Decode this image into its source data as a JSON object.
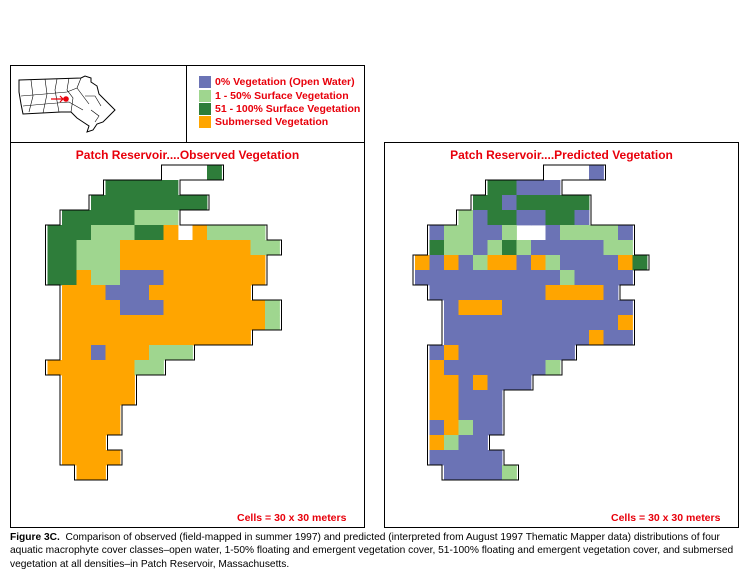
{
  "legend": {
    "items": [
      {
        "label": "0% Vegetation (Open Water)",
        "color": "#6b73b5"
      },
      {
        "label": "1 - 50% Surface Vegetation",
        "color": "#9fd68f"
      },
      {
        "label": "51 - 100% Surface Vegetation",
        "color": "#2e7d3a"
      },
      {
        "label": "Submersed Vegetation",
        "color": "#ffa500"
      }
    ]
  },
  "observed": {
    "title": "Patch Reservoir....Observed Vegetation",
    "cells_note": "Cells = 30 x 30 meters"
  },
  "predicted": {
    "title": "Patch Reservoir....Predicted Vegetation",
    "cells_note": "Cells = 30 x 30 meters"
  },
  "caption": {
    "label": "Figure 3C.",
    "text": "Comparison of observed (field-mapped in summer 1997) and predicted (interpreted from August 1997 Thematic Mapper data) distributions of four aquatic macrophyte cover classes–open water, 1-50% floating and emergent vegetation cover, 51-100% floating and emergent vegetation cover, and submersed vegetation at all densities–in Patch Reservoir, Massachusetts."
  }
}
